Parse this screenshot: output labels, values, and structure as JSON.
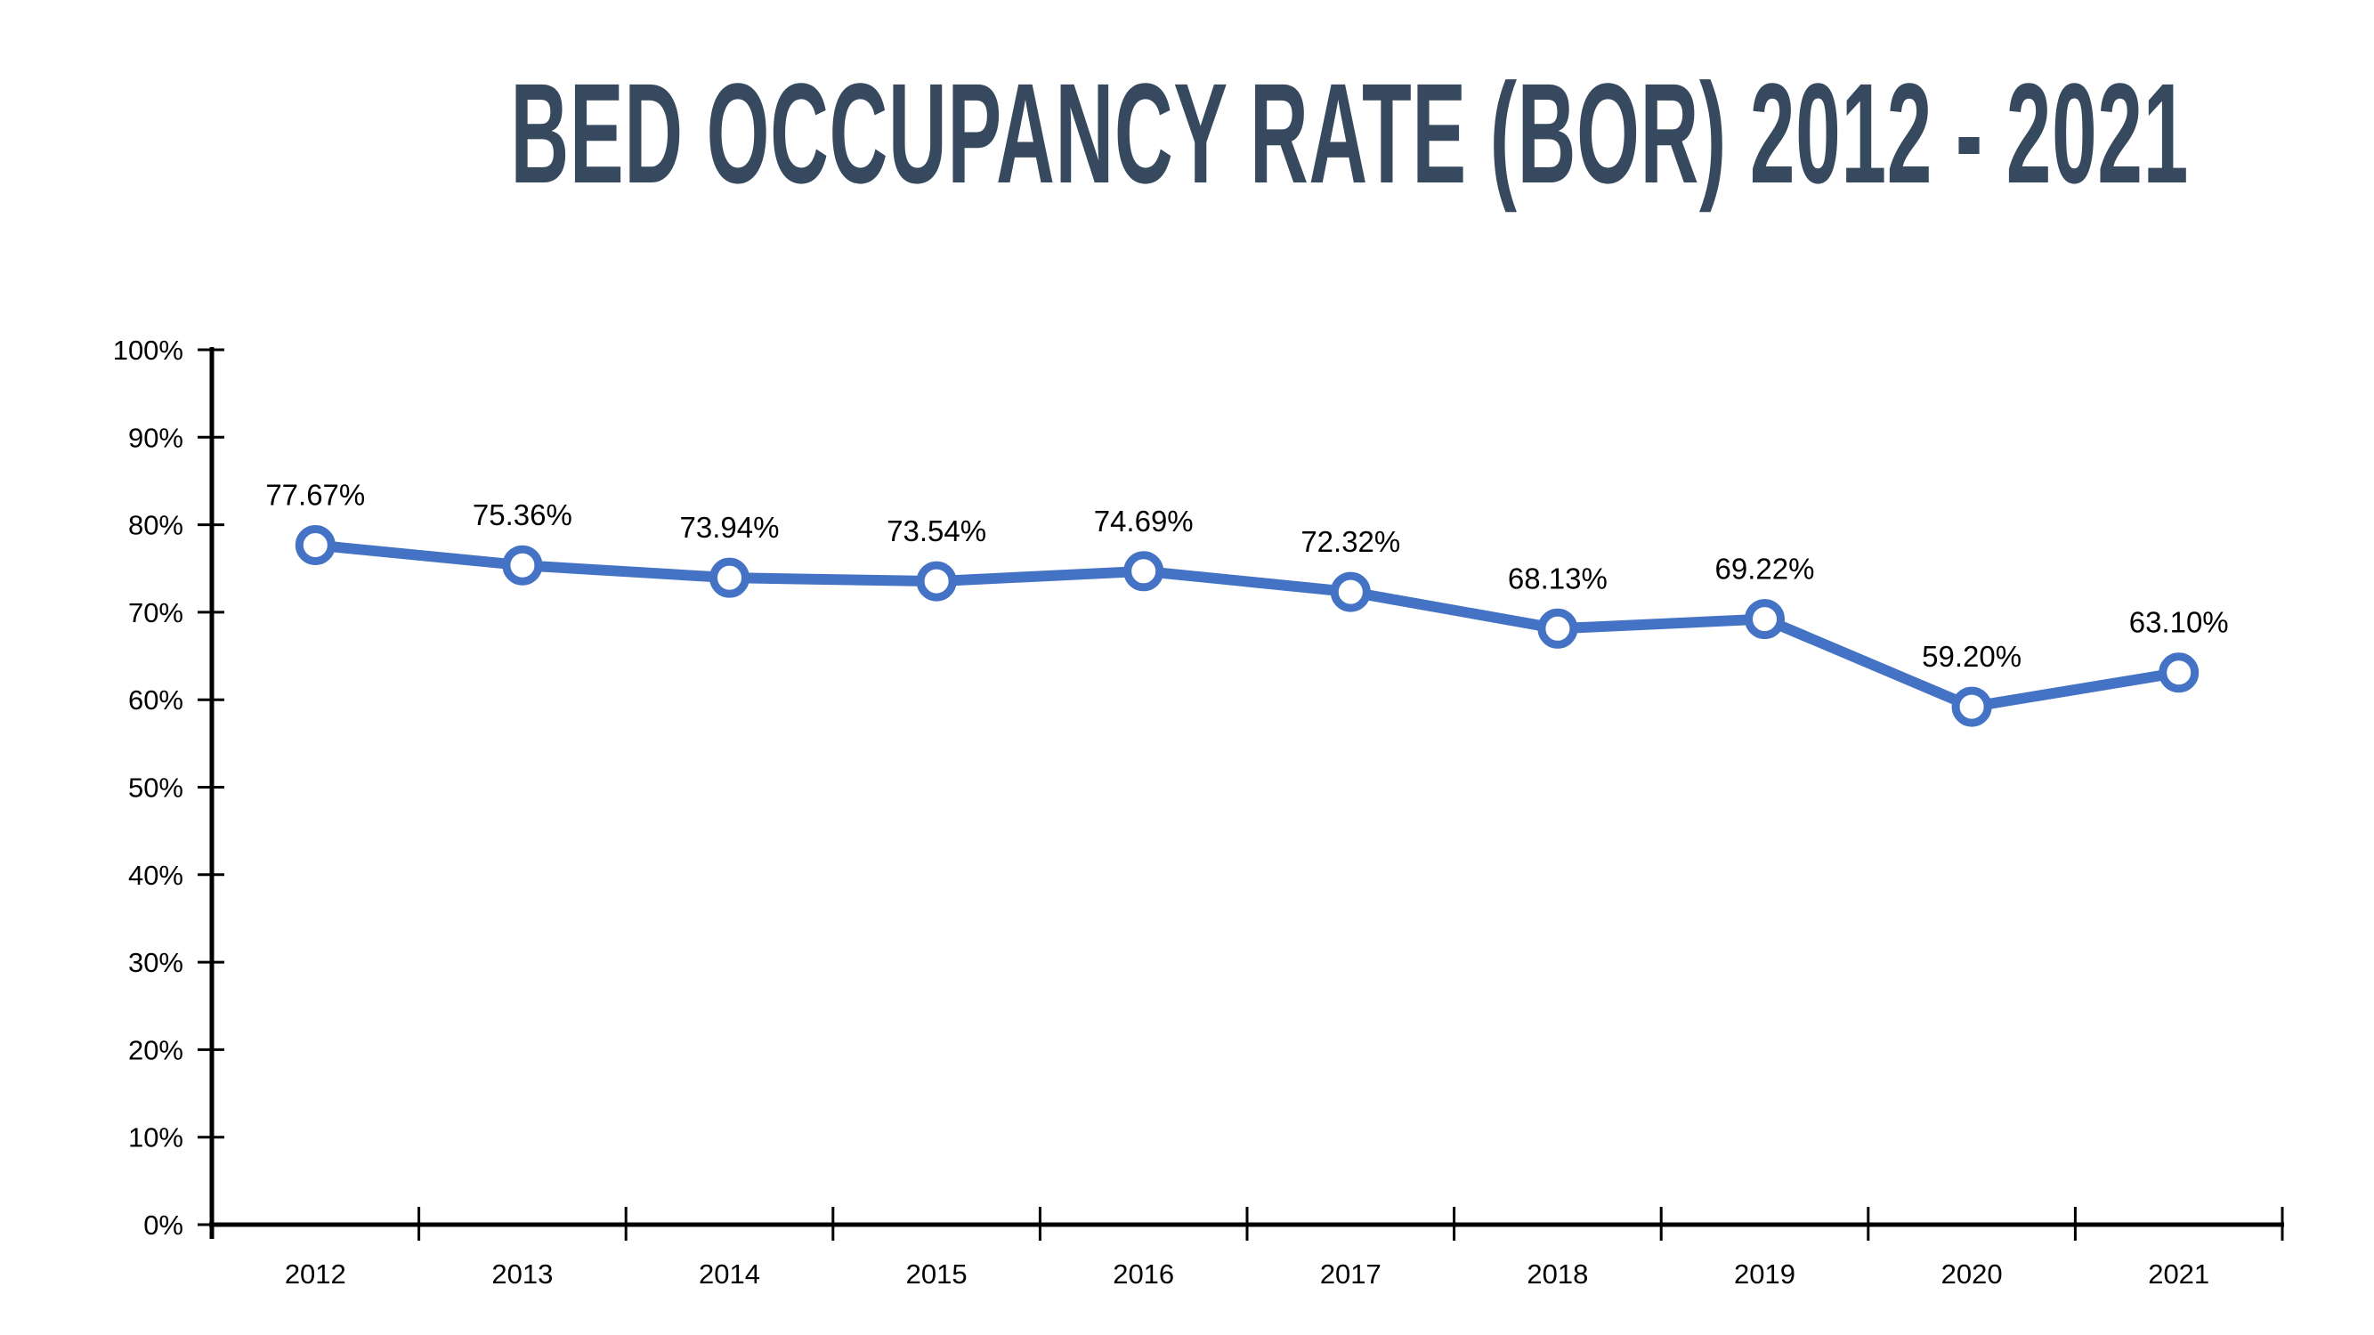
{
  "header": {
    "title": "BED OCCUPANCY RATE (BOR) 2012 - 2021",
    "title_color": "#36495E"
  },
  "chart_data": {
    "type": "line",
    "title": "BED OCCUPANCY RATE (BOR) 2012 - 2021",
    "categories": [
      "2012",
      "2013",
      "2014",
      "2015",
      "2016",
      "2017",
      "2018",
      "2019",
      "2020",
      "2021"
    ],
    "values": [
      77.67,
      75.36,
      73.94,
      73.54,
      74.69,
      72.32,
      68.13,
      69.22,
      59.2,
      63.1
    ],
    "data_labels": [
      "77.67%",
      "75.36%",
      "73.94%",
      "73.54%",
      "74.69%",
      "72.32%",
      "68.13%",
      "69.22%",
      "59.20%",
      "63.10%"
    ],
    "y_tick_labels": [
      "0%",
      "10%",
      "20%",
      "30%",
      "40%",
      "50%",
      "60%",
      "70%",
      "80%",
      "90%",
      "100%"
    ],
    "ylim": [
      0,
      100
    ],
    "y_tick_step": 10,
    "xlabel": "",
    "ylabel": "",
    "grid": false,
    "legend": false,
    "line_color": "#4472C4",
    "marker_style": "circle-white-fill",
    "marker_fill": "#FFFFFF",
    "axis_color": "#000000",
    "tick_label_color": "#000000",
    "data_label_color": "#000000"
  }
}
